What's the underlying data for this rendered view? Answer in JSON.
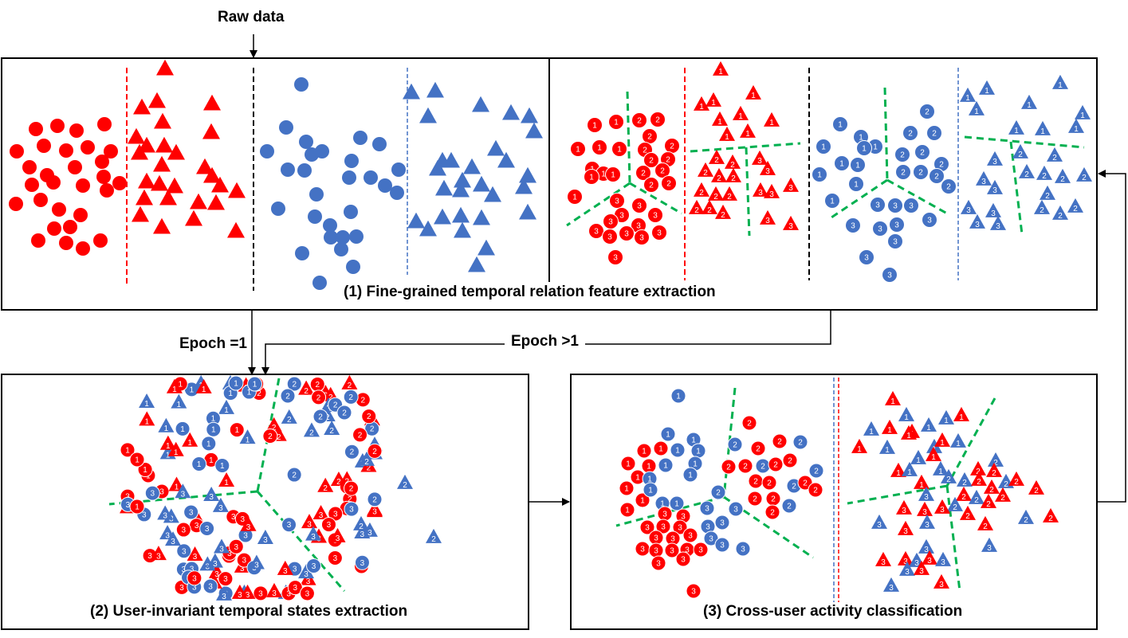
{
  "labels": {
    "raw_data": "Raw data",
    "epoch_eq_1": "Epoch =1",
    "epoch_gt_1": "Epoch >1",
    "panel1_caption": "(1) Fine-grained temporal relation feature extraction",
    "panel2_caption": "(2) User-invariant temporal states extraction",
    "panel3_caption": "(3) Cross-user activity classification"
  },
  "colors": {
    "red": "#ff0000",
    "blue": "#4472c4",
    "green_boundary": "#00b050",
    "frame": "#000000"
  },
  "legend_semantics": {
    "shapes": [
      "circle",
      "triangle"
    ],
    "state_numbers": [
      "1",
      "2",
      "3"
    ]
  }
}
